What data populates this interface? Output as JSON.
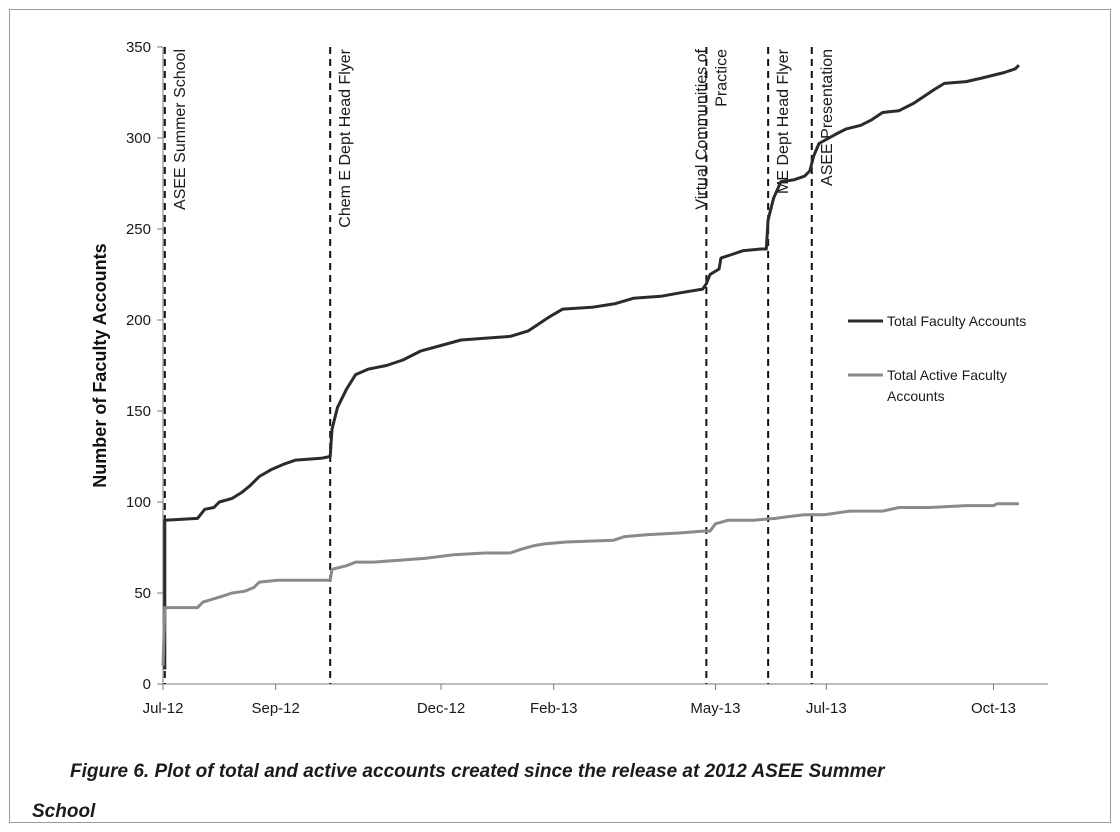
{
  "caption": {
    "line1": "Figure 6. Plot of total and active accounts created since the release at 2012 ASEE Summer",
    "line2": "School"
  },
  "chart_data": {
    "type": "line",
    "title": "",
    "ylabel": "Number of Faculty Accounts",
    "xlabel": "",
    "ylim": [
      0,
      350
    ],
    "yticks": [
      0,
      50,
      100,
      150,
      200,
      250,
      300,
      350
    ],
    "xlim": [
      "2012-07-01",
      "2013-10-31"
    ],
    "xticks": [
      {
        "date": "2012-07-01",
        "label": "Jul-12"
      },
      {
        "date": "2012-09-01",
        "label": "Sep-12"
      },
      {
        "date": "2012-12-01",
        "label": "Dec-12"
      },
      {
        "date": "2013-02-01",
        "label": "Feb-13"
      },
      {
        "date": "2013-05-01",
        "label": "May-13"
      },
      {
        "date": "2013-07-01",
        "label": "Jul-13"
      },
      {
        "date": "2013-10-01",
        "label": "Oct-13"
      }
    ],
    "grid": false,
    "legend_position": "right",
    "series": [
      {
        "name": "Total Faculty Accounts",
        "color": "#2b2b2b",
        "points": [
          [
            "2012-07-02",
            8
          ],
          [
            "2012-07-02",
            90
          ],
          [
            "2012-07-20",
            91
          ],
          [
            "2012-07-24",
            96
          ],
          [
            "2012-07-29",
            97
          ],
          [
            "2012-08-01",
            100
          ],
          [
            "2012-08-08",
            102
          ],
          [
            "2012-08-13",
            105
          ],
          [
            "2012-08-18",
            109
          ],
          [
            "2012-08-23",
            114
          ],
          [
            "2012-08-30",
            118
          ],
          [
            "2012-09-06",
            121
          ],
          [
            "2012-09-12",
            123
          ],
          [
            "2012-09-26",
            124
          ],
          [
            "2012-10-01",
            125
          ],
          [
            "2012-10-02",
            140
          ],
          [
            "2012-10-05",
            152
          ],
          [
            "2012-10-10",
            162
          ],
          [
            "2012-10-15",
            170
          ],
          [
            "2012-10-22",
            173
          ],
          [
            "2012-11-01",
            175
          ],
          [
            "2012-11-10",
            178
          ],
          [
            "2012-11-20",
            183
          ],
          [
            "2012-12-01",
            186
          ],
          [
            "2012-12-12",
            189
          ],
          [
            "2012-12-25",
            190
          ],
          [
            "2013-01-08",
            191
          ],
          [
            "2013-01-18",
            194
          ],
          [
            "2013-01-24",
            198
          ],
          [
            "2013-01-30",
            202
          ],
          [
            "2013-02-06",
            206
          ],
          [
            "2013-02-22",
            207
          ],
          [
            "2013-03-07",
            209
          ],
          [
            "2013-03-17",
            212
          ],
          [
            "2013-04-01",
            213
          ],
          [
            "2013-04-12",
            215
          ],
          [
            "2013-04-24",
            217
          ],
          [
            "2013-04-26",
            220
          ],
          [
            "2013-04-28",
            225
          ],
          [
            "2013-05-03",
            228
          ],
          [
            "2013-05-04",
            234
          ],
          [
            "2013-05-10",
            236
          ],
          [
            "2013-05-16",
            238
          ],
          [
            "2013-05-26",
            239
          ],
          [
            "2013-05-29",
            239
          ],
          [
            "2013-05-30",
            255
          ],
          [
            "2013-06-02",
            267
          ],
          [
            "2013-06-06",
            276
          ],
          [
            "2013-06-13",
            277
          ],
          [
            "2013-06-19",
            279
          ],
          [
            "2013-06-22",
            282
          ],
          [
            "2013-06-24",
            290
          ],
          [
            "2013-06-27",
            297
          ],
          [
            "2013-07-06",
            302
          ],
          [
            "2013-07-12",
            305
          ],
          [
            "2013-07-20",
            307
          ],
          [
            "2013-07-26",
            310
          ],
          [
            "2013-08-01",
            314
          ],
          [
            "2013-08-10",
            315
          ],
          [
            "2013-08-18",
            319
          ],
          [
            "2013-08-24",
            323
          ],
          [
            "2013-08-30",
            327
          ],
          [
            "2013-09-04",
            330
          ],
          [
            "2013-09-16",
            331
          ],
          [
            "2013-09-25",
            333
          ],
          [
            "2013-10-07",
            336
          ],
          [
            "2013-10-13",
            338
          ],
          [
            "2013-10-15",
            340
          ]
        ]
      },
      {
        "name": "Total Active Faculty Accounts",
        "color": "#8a8a8a",
        "points": [
          [
            "2012-07-01",
            10
          ],
          [
            "2012-07-02",
            42
          ],
          [
            "2012-07-20",
            42
          ],
          [
            "2012-07-23",
            45
          ],
          [
            "2012-08-02",
            48
          ],
          [
            "2012-08-08",
            50
          ],
          [
            "2012-08-15",
            51
          ],
          [
            "2012-08-20",
            53
          ],
          [
            "2012-08-23",
            56
          ],
          [
            "2012-09-02",
            57
          ],
          [
            "2012-10-01",
            57
          ],
          [
            "2012-10-02",
            63
          ],
          [
            "2012-10-10",
            65
          ],
          [
            "2012-10-15",
            67
          ],
          [
            "2012-10-25",
            67
          ],
          [
            "2012-11-08",
            68
          ],
          [
            "2012-11-22",
            69
          ],
          [
            "2012-12-08",
            71
          ],
          [
            "2012-12-25",
            72
          ],
          [
            "2013-01-08",
            72
          ],
          [
            "2013-01-14",
            74
          ],
          [
            "2013-01-21",
            76
          ],
          [
            "2013-01-27",
            77
          ],
          [
            "2013-02-08",
            78
          ],
          [
            "2013-03-06",
            79
          ],
          [
            "2013-03-12",
            81
          ],
          [
            "2013-03-24",
            82
          ],
          [
            "2013-04-12",
            83
          ],
          [
            "2013-04-24",
            84
          ],
          [
            "2013-04-28",
            84
          ],
          [
            "2013-05-01",
            88
          ],
          [
            "2013-05-08",
            90
          ],
          [
            "2013-05-22",
            90
          ],
          [
            "2013-06-03",
            91
          ],
          [
            "2013-06-10",
            92
          ],
          [
            "2013-06-19",
            93
          ],
          [
            "2013-06-30",
            93
          ],
          [
            "2013-07-14",
            95
          ],
          [
            "2013-08-01",
            95
          ],
          [
            "2013-08-10",
            97
          ],
          [
            "2013-08-27",
            97
          ],
          [
            "2013-09-16",
            98
          ],
          [
            "2013-10-01",
            98
          ],
          [
            "2013-10-03",
            99
          ],
          [
            "2013-10-15",
            99
          ]
        ]
      }
    ],
    "annotations": [
      {
        "date": "2012-07-02",
        "lines": [
          "ASEE Summer School"
        ]
      },
      {
        "date": "2012-10-01",
        "lines": [
          "Chem E Dept Head Flyer"
        ]
      },
      {
        "date": "2013-04-26",
        "lines": [
          "Virtual Communities of",
          "Practice"
        ]
      },
      {
        "date": "2013-05-30",
        "lines": [
          "ME Dept Head Flyer"
        ]
      },
      {
        "date": "2013-06-23",
        "lines": [
          "ASEE Presentation"
        ]
      }
    ]
  }
}
